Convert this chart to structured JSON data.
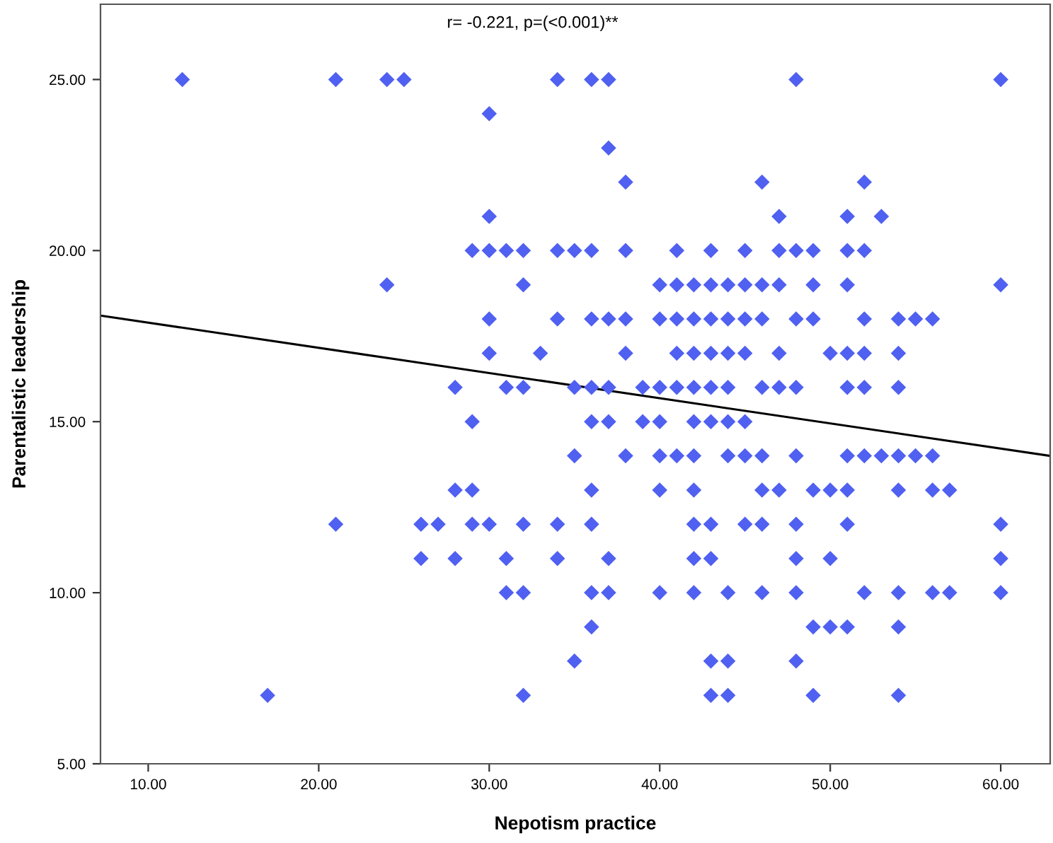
{
  "chart_data": {
    "type": "scatter",
    "xlabel": "Nepotism practice",
    "ylabel": "Parentalistic leadership",
    "annotations": [
      "r= -0.221, p=(<0.001)**"
    ],
    "xlim": [
      7.2,
      62.9
    ],
    "ylim": [
      5,
      27.2
    ],
    "xticks": [
      {
        "value": 10,
        "label": "10.00"
      },
      {
        "value": 20,
        "label": "20.00"
      },
      {
        "value": 30,
        "label": "30.00"
      },
      {
        "value": 40,
        "label": "40.00"
      },
      {
        "value": 50,
        "label": "50.00"
      },
      {
        "value": 60,
        "label": "60.00"
      }
    ],
    "yticks": [
      {
        "value": 5,
        "label": "5.00"
      },
      {
        "value": 10,
        "label": "10.00"
      },
      {
        "value": 15,
        "label": "15.00"
      },
      {
        "value": 20,
        "label": "20.00"
      },
      {
        "value": 25,
        "label": "25.00"
      }
    ],
    "grid": false,
    "series": [
      {
        "marker": "diamond",
        "color": "#5060f0",
        "x": [
          12,
          21,
          24,
          25,
          34,
          36,
          37,
          48,
          60,
          30,
          37,
          38,
          46,
          52,
          30,
          47,
          51,
          53,
          29,
          30,
          31,
          32,
          34,
          35,
          36,
          38,
          41,
          43,
          45,
          47,
          48,
          49,
          51,
          52,
          24,
          32,
          40,
          41,
          42,
          43,
          44,
          45,
          46,
          47,
          49,
          51,
          60,
          30,
          34,
          36,
          37,
          38,
          40,
          41,
          42,
          43,
          44,
          45,
          46,
          48,
          49,
          52,
          54,
          55,
          56,
          30,
          33,
          38,
          41,
          42,
          43,
          44,
          45,
          47,
          50,
          51,
          52,
          54,
          28,
          31,
          32,
          35,
          36,
          37,
          39,
          40,
          41,
          42,
          43,
          44,
          46,
          47,
          48,
          51,
          52,
          54,
          29,
          36,
          37,
          39,
          40,
          42,
          43,
          44,
          45,
          35,
          38,
          40,
          41,
          42,
          44,
          45,
          46,
          48,
          51,
          52,
          53,
          54,
          55,
          56,
          28,
          29,
          36,
          40,
          42,
          46,
          47,
          49,
          50,
          51,
          54,
          56,
          57,
          21,
          26,
          27,
          29,
          30,
          32,
          34,
          36,
          42,
          43,
          45,
          46,
          48,
          51,
          60,
          26,
          28,
          31,
          34,
          37,
          42,
          43,
          48,
          50,
          60,
          31,
          32,
          36,
          37,
          40,
          42,
          44,
          46,
          48,
          52,
          54,
          56,
          57,
          60,
          36,
          49,
          50,
          51,
          54,
          35,
          43,
          44,
          48,
          17,
          32,
          43,
          44,
          49,
          54
        ],
        "values": [
          25,
          25,
          25,
          25,
          25,
          25,
          25,
          25,
          25,
          24,
          23,
          22,
          22,
          22,
          21,
          21,
          21,
          21,
          20,
          20,
          20,
          20,
          20,
          20,
          20,
          20,
          20,
          20,
          20,
          20,
          20,
          20,
          20,
          20,
          19,
          19,
          19,
          19,
          19,
          19,
          19,
          19,
          19,
          19,
          19,
          19,
          19,
          18,
          18,
          18,
          18,
          18,
          18,
          18,
          18,
          18,
          18,
          18,
          18,
          18,
          18,
          18,
          18,
          18,
          18,
          17,
          17,
          17,
          17,
          17,
          17,
          17,
          17,
          17,
          17,
          17,
          17,
          17,
          16,
          16,
          16,
          16,
          16,
          16,
          16,
          16,
          16,
          16,
          16,
          16,
          16,
          16,
          16,
          16,
          16,
          16,
          15,
          15,
          15,
          15,
          15,
          15,
          15,
          15,
          15,
          14,
          14,
          14,
          14,
          14,
          14,
          14,
          14,
          14,
          14,
          14,
          14,
          14,
          14,
          14,
          13,
          13,
          13,
          13,
          13,
          13,
          13,
          13,
          13,
          13,
          13,
          13,
          13,
          12,
          12,
          12,
          12,
          12,
          12,
          12,
          12,
          12,
          12,
          12,
          12,
          12,
          12,
          12,
          11,
          11,
          11,
          11,
          11,
          11,
          11,
          11,
          11,
          11,
          10,
          10,
          10,
          10,
          10,
          10,
          10,
          10,
          10,
          10,
          10,
          10,
          10,
          10,
          9,
          9,
          9,
          9,
          9,
          8,
          8,
          8,
          8,
          7,
          7,
          7,
          7,
          7,
          7
        ]
      },
      {
        "type": "line",
        "marker": "none",
        "color": "#000000",
        "x": [
          7.2,
          62.9
        ],
        "values": [
          18.1,
          14.0
        ]
      }
    ]
  }
}
